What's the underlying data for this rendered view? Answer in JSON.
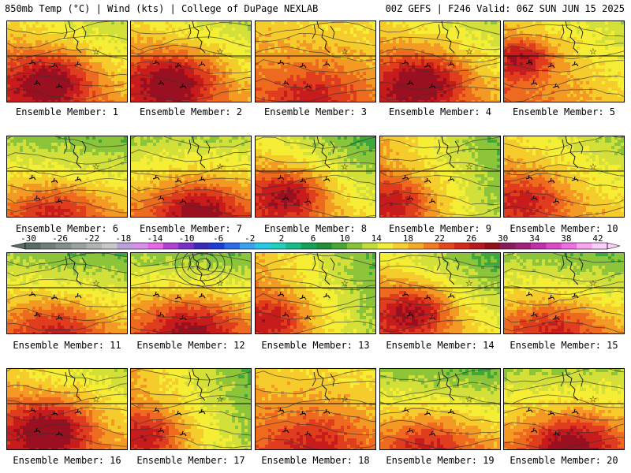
{
  "header": {
    "left": "850mb Temp (°C) | Wind (kts) | College of DuPage NEXLAB",
    "right": "00Z GEFS | F246 Valid: 06Z SUN JUN 15 2025"
  },
  "members": [
    {
      "label": "Ensemble Member: 1",
      "pattern": "hot-southwest"
    },
    {
      "label": "Ensemble Member: 2",
      "pattern": "hot-southwest"
    },
    {
      "label": "Ensemble Member: 3",
      "pattern": "warm-uniform"
    },
    {
      "label": "Ensemble Member: 4",
      "pattern": "hot-southwest"
    },
    {
      "label": "Ensemble Member: 5",
      "pattern": "hot-west"
    },
    {
      "label": "Ensemble Member: 6",
      "pattern": "cool-north"
    },
    {
      "label": "Ensemble Member: 7",
      "pattern": "hot-south"
    },
    {
      "label": "Ensemble Member: 8",
      "pattern": "hot-southwest-cool-ne"
    },
    {
      "label": "Ensemble Member: 9",
      "pattern": "cool-east"
    },
    {
      "label": "Ensemble Member: 10",
      "pattern": "cool-northeast"
    },
    {
      "label": "Ensemble Member: 11",
      "pattern": "cool-north"
    },
    {
      "label": "Ensemble Member: 12",
      "pattern": "low-north"
    },
    {
      "label": "Ensemble Member: 13",
      "pattern": "cool-east"
    },
    {
      "label": "Ensemble Member: 14",
      "pattern": "hot-southwest-cool-ne"
    },
    {
      "label": "Ensemble Member: 15",
      "pattern": "cool-north"
    },
    {
      "label": "Ensemble Member: 16",
      "pattern": "hot-southwest"
    },
    {
      "label": "Ensemble Member: 17",
      "pattern": "cool-east"
    },
    {
      "label": "Ensemble Member: 18",
      "pattern": "warm-uniform"
    },
    {
      "label": "Ensemble Member: 19",
      "pattern": "cool-north"
    },
    {
      "label": "Ensemble Member: 20",
      "pattern": "hot-south"
    }
  ],
  "colorbar": {
    "ticks": [
      "-30",
      "-26",
      "-22",
      "-18",
      "-14",
      "-10",
      "-6",
      "-2",
      "2",
      "6",
      "10",
      "14",
      "18",
      "22",
      "26",
      "30",
      "34",
      "38",
      "42"
    ],
    "colors": [
      "#5a6a64",
      "#6f7e78",
      "#848f8b",
      "#9aa2a0",
      "#b0b5b4",
      "#c8c8c8",
      "#b9a2dd",
      "#d98ee8",
      "#e668e6",
      "#b040d0",
      "#7a2ec8",
      "#3a28b8",
      "#1c3cd8",
      "#2a6ae8",
      "#3aa0f0",
      "#26c8e6",
      "#20d2be",
      "#18bc8a",
      "#14a25a",
      "#1f8f3a",
      "#46a832",
      "#86c33a",
      "#c2dc3c",
      "#f2ef3a",
      "#f6d02e",
      "#f6aa26",
      "#f27a20",
      "#e6481e",
      "#d42a1e",
      "#b81820",
      "#941018",
      "#8a1a5a",
      "#a0207a",
      "#c030a8",
      "#dc48c8",
      "#ee70e2",
      "#f8a4f2",
      "#fcd0fa"
    ]
  }
}
